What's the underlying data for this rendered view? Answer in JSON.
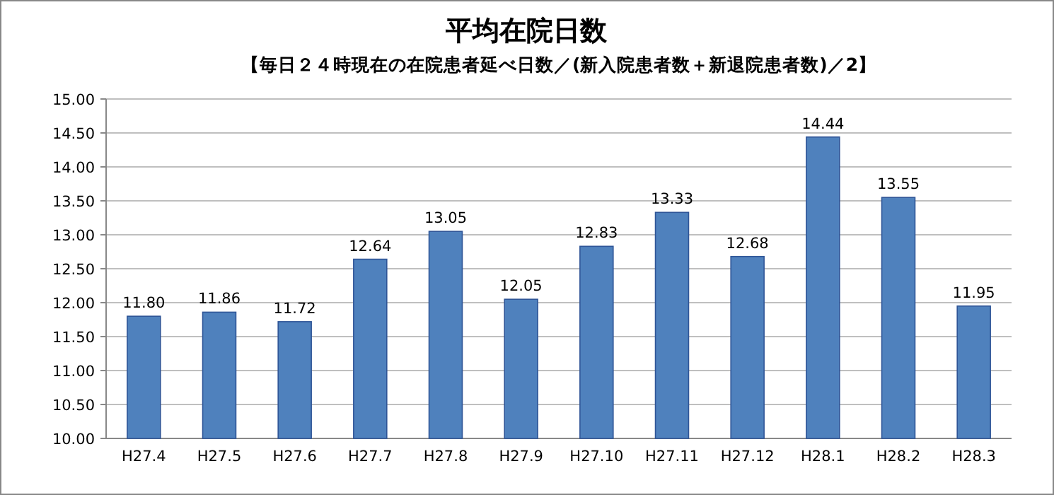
{
  "chart_data": {
    "type": "bar",
    "title": "平均在院日数",
    "subtitle": "【毎日２４時現在の在院患者延べ日数／(新入院患者数＋新退院患者数)／2】",
    "categories": [
      "H27.4",
      "H27.5",
      "H27.6",
      "H27.7",
      "H27.8",
      "H27.9",
      "H27.10",
      "H27.11",
      "H27.12",
      "H28.1",
      "H28.2",
      "H28.3"
    ],
    "values": [
      11.8,
      11.86,
      11.72,
      12.64,
      13.05,
      12.05,
      12.83,
      13.33,
      12.68,
      14.44,
      13.55,
      11.95
    ],
    "value_labels": [
      "11.80",
      "11.86",
      "11.72",
      "12.64",
      "13.05",
      "12.05",
      "12.83",
      "13.33",
      "12.68",
      "14.44",
      "13.55",
      "11.95"
    ],
    "color": "#4f81bd",
    "ylim": [
      10,
      15
    ],
    "yticks": [
      {
        "value": 10,
        "label": "10.00"
      },
      {
        "value": 10.5,
        "label": "10.50"
      },
      {
        "value": 11,
        "label": "11.00"
      },
      {
        "value": 11.5,
        "label": "11.50"
      },
      {
        "value": 12,
        "label": "12.00"
      },
      {
        "value": 12.5,
        "label": "12.50"
      },
      {
        "value": 13,
        "label": "13.00"
      },
      {
        "value": 13.5,
        "label": "13.50"
      },
      {
        "value": 14,
        "label": "14.00"
      },
      {
        "value": 14.5,
        "label": "14.50"
      },
      {
        "value": 15,
        "label": "15.00"
      }
    ],
    "grid": "y"
  }
}
